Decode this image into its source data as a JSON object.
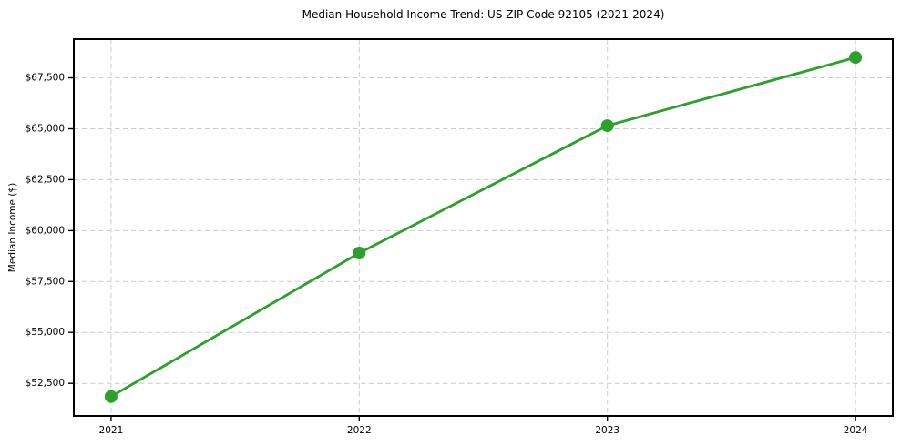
{
  "chart": {
    "title": "Median Household Income Trend: US ZIP Code 92105 (2021-2024)",
    "ylabel": "Median Income ($)"
  },
  "chart_data": {
    "type": "line",
    "title": "Median Household Income Trend: US ZIP Code 92105 (2021-2024)",
    "xlabel": "",
    "ylabel": "Median Income ($)",
    "x": [
      2021,
      2022,
      2023,
      2024
    ],
    "series": [
      {
        "name": "Median Household Income",
        "values": [
          51850,
          58900,
          65150,
          68500
        ]
      }
    ],
    "xtick_labels": [
      "2021",
      "2022",
      "2023",
      "2024"
    ],
    "ytick_values": [
      52500,
      55000,
      57500,
      60000,
      62500,
      65000,
      67500
    ],
    "ytick_labels": [
      "$52,500",
      "$55,000",
      "$57,500",
      "$60,000",
      "$62,500",
      "$65,000",
      "$67,500"
    ],
    "xlim": [
      2020.85,
      2024.15
    ],
    "ylim": [
      50900,
      69400
    ],
    "grid": true,
    "grid_style": "dashed",
    "legend": false,
    "line_color": "#2ca02c",
    "marker": "circle",
    "marker_radius": 7,
    "grid_color": "#cccccc",
    "spine_color": "#000000",
    "background": "#ffffff"
  }
}
